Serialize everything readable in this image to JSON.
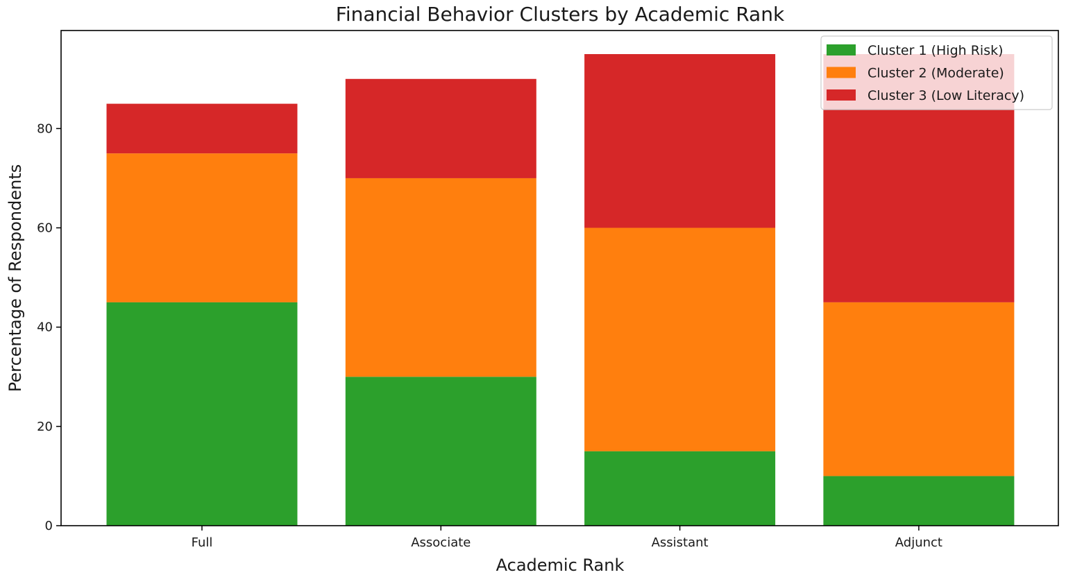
{
  "chart_data": {
    "type": "bar",
    "stacked": true,
    "title": "Financial Behavior Clusters by Academic Rank",
    "xlabel": "Academic Rank",
    "ylabel": "Percentage of Respondents",
    "categories": [
      "Full",
      "Associate",
      "Assistant",
      "Adjunct"
    ],
    "series": [
      {
        "name": "Cluster 1 (High Risk)",
        "values": [
          45,
          30,
          15,
          10
        ],
        "color": "#2ca02c"
      },
      {
        "name": "Cluster 2 (Moderate)",
        "values": [
          30,
          40,
          45,
          35
        ],
        "color": "#ff7f0e"
      },
      {
        "name": "Cluster 3 (Low Literacy)",
        "values": [
          10,
          20,
          35,
          50
        ],
        "color": "#d62728"
      }
    ],
    "ylim": [
      0,
      99.75
    ],
    "yticks": [
      0,
      20,
      40,
      60,
      80
    ],
    "grid": false,
    "legend_position": "top-right"
  }
}
